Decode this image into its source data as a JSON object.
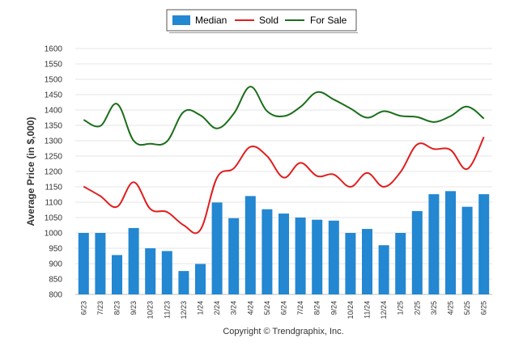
{
  "chart_data": {
    "type": "bar",
    "categories": [
      "6/23",
      "7/23",
      "8/23",
      "9/23",
      "10/23",
      "11/23",
      "12/23",
      "1/24",
      "2/24",
      "3/24",
      "4/24",
      "5/24",
      "6/24",
      "7/24",
      "8/24",
      "9/24",
      "10/24",
      "11/24",
      "12/24",
      "1/25",
      "2/25",
      "3/25",
      "4/25",
      "5/25",
      "6/25"
    ],
    "series": [
      {
        "name": "Median",
        "kind": "bar",
        "color": "#2387d1",
        "values": [
          1000,
          1000,
          928,
          1016,
          950,
          941,
          876,
          899,
          1099,
          1048,
          1120,
          1077,
          1063,
          1050,
          1043,
          1040,
          1000,
          1013,
          960,
          1000,
          1071,
          1126,
          1136,
          1085,
          1126
        ]
      },
      {
        "name": "Sold",
        "kind": "line",
        "color": "#e01e1e",
        "values": [
          1151,
          1120,
          1085,
          1165,
          1078,
          1068,
          1025,
          1010,
          1180,
          1210,
          1280,
          1250,
          1180,
          1228,
          1185,
          1190,
          1150,
          1195,
          1150,
          1198,
          1288,
          1273,
          1270,
          1208,
          1312
        ]
      },
      {
        "name": "For Sale",
        "kind": "line",
        "color": "#1a6e1a",
        "values": [
          1368,
          1348,
          1420,
          1300,
          1290,
          1298,
          1394,
          1383,
          1340,
          1388,
          1476,
          1396,
          1380,
          1410,
          1458,
          1434,
          1405,
          1375,
          1396,
          1381,
          1377,
          1361,
          1380,
          1411,
          1372
        ]
      }
    ],
    "ylabel": "Average Price (in $,000)",
    "ylim": [
      800,
      1600
    ],
    "yticks": [
      800,
      850,
      900,
      950,
      1000,
      1050,
      1100,
      1150,
      1200,
      1250,
      1300,
      1350,
      1400,
      1450,
      1500,
      1550,
      1600
    ],
    "grid": true,
    "legend_position": "top-center",
    "copyright": "Copyright © Trendgraphix, Inc."
  }
}
